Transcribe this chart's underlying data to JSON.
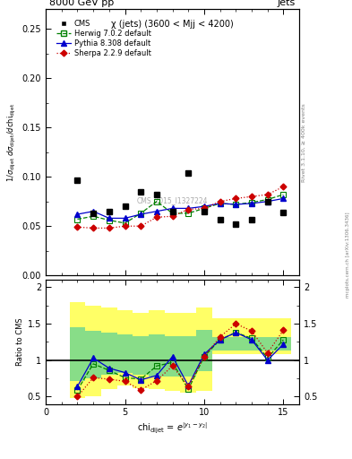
{
  "title_top": "8000 GeV pp",
  "title_right": "Jets",
  "annotation": "χ (jets) (3600 < Mjj < 4200)",
  "watermark": "CMS_2015_I1327224",
  "rivet_label": "Rivet 3.1.10, ≥ 400k events",
  "mcplots_label": "mcplots.cern.ch [arXiv:1306.3436]",
  "ylabel_main": "1/σ_dijet  dσ_dijet/dchi_dijet",
  "ylabel_ratio": "Ratio to CMS",
  "xlabel_main": "chi_dijet",
  "xlabel_sub": "= e^{|y_1 - y_2|}",
  "xlim": [
    1,
    16
  ],
  "ylim_main": [
    0.0,
    0.27
  ],
  "ylim_ratio": [
    0.4,
    2.1
  ],
  "yticks_main": [
    0.0,
    0.05,
    0.1,
    0.15,
    0.2,
    0.25
  ],
  "yticks_ratio": [
    0.5,
    1.0,
    1.5,
    2.0
  ],
  "xticks": [
    0,
    5,
    10,
    15
  ],
  "cms_x": [
    2,
    3,
    4,
    5,
    6,
    7,
    8,
    9,
    10,
    11,
    12,
    13,
    14,
    15
  ],
  "cms_y": [
    0.097,
    0.063,
    0.065,
    0.07,
    0.085,
    0.082,
    0.065,
    0.104,
    0.065,
    0.057,
    0.052,
    0.057,
    0.075,
    0.064
  ],
  "herwig_x": [
    2,
    3,
    4,
    5,
    6,
    7,
    8,
    9,
    10,
    11,
    12,
    13,
    14,
    15
  ],
  "herwig_y": [
    0.057,
    0.06,
    0.056,
    0.053,
    0.063,
    0.075,
    0.063,
    0.063,
    0.068,
    0.073,
    0.072,
    0.074,
    0.077,
    0.082
  ],
  "pythia_x": [
    2,
    3,
    4,
    5,
    6,
    7,
    8,
    9,
    10,
    11,
    12,
    13,
    14,
    15
  ],
  "pythia_y": [
    0.062,
    0.065,
    0.058,
    0.058,
    0.062,
    0.065,
    0.068,
    0.068,
    0.07,
    0.073,
    0.072,
    0.073,
    0.075,
    0.078
  ],
  "sherpa_x": [
    2,
    3,
    4,
    5,
    6,
    7,
    8,
    9,
    10,
    11,
    12,
    13,
    14,
    15
  ],
  "sherpa_y": [
    0.049,
    0.048,
    0.048,
    0.05,
    0.05,
    0.059,
    0.06,
    0.067,
    0.068,
    0.075,
    0.078,
    0.08,
    0.082,
    0.09
  ],
  "herwig_ratio": [
    0.59,
    0.95,
    0.86,
    0.76,
    0.74,
    0.92,
    0.97,
    0.6,
    1.05,
    1.28,
    1.38,
    1.3,
    1.03,
    1.28
  ],
  "pythia_ratio": [
    0.64,
    1.03,
    0.89,
    0.83,
    0.73,
    0.79,
    1.05,
    0.65,
    1.08,
    1.28,
    1.38,
    1.28,
    1.0,
    1.22
  ],
  "sherpa_ratio": [
    0.5,
    0.76,
    0.74,
    0.71,
    0.59,
    0.72,
    0.92,
    0.64,
    1.05,
    1.32,
    1.5,
    1.4,
    1.1,
    1.41
  ],
  "band_x_lo": [
    1.5,
    2.5,
    3.5,
    4.5,
    5.5,
    6.5,
    7.5,
    8.5,
    9.5,
    10.5,
    11.5,
    12.5,
    13.5,
    14.5
  ],
  "band_x_hi": [
    2.5,
    3.5,
    4.5,
    5.5,
    6.5,
    7.5,
    8.5,
    9.5,
    10.5,
    11.5,
    12.5,
    13.5,
    14.5,
    15.5
  ],
  "yellow_lo": [
    0.48,
    0.5,
    0.6,
    0.65,
    0.62,
    0.6,
    0.58,
    0.55,
    0.58,
    1.08,
    1.08,
    1.08,
    1.08,
    1.08
  ],
  "yellow_hi": [
    1.8,
    1.75,
    1.72,
    1.68,
    1.65,
    1.68,
    1.65,
    1.65,
    1.72,
    1.58,
    1.58,
    1.58,
    1.58,
    1.58
  ],
  "green_lo": [
    0.72,
    0.75,
    0.8,
    0.82,
    0.8,
    0.78,
    0.78,
    0.78,
    0.85,
    1.13,
    1.13,
    1.13,
    1.13,
    1.13
  ],
  "green_hi": [
    1.45,
    1.4,
    1.38,
    1.35,
    1.33,
    1.35,
    1.33,
    1.33,
    1.42,
    1.32,
    1.32,
    1.32,
    1.32,
    1.32
  ],
  "color_herwig": "#008000",
  "color_pythia": "#0000cc",
  "color_sherpa": "#cc0000",
  "color_cms": "#000000",
  "color_yellow": "#ffff66",
  "color_green": "#88dd88"
}
